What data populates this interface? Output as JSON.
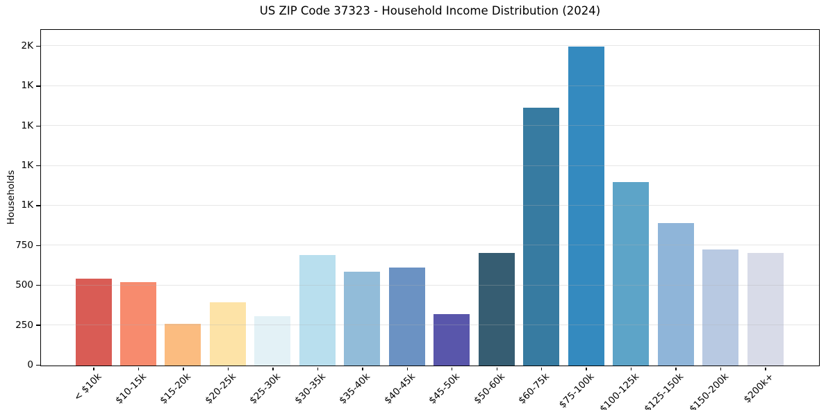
{
  "chart_data": {
    "type": "bar",
    "title": "US ZIP Code 37323 - Household Income Distribution (2024)",
    "xlabel": "",
    "ylabel": "Households",
    "categories": [
      "< $10k",
      "$10-15k",
      "$15-20k",
      "$20-25k",
      "$25-30k",
      "$30-35k",
      "$35-40k",
      "$40-45k",
      "$45-50k",
      "$50-60k",
      "$60-75k",
      "$75-100k",
      "$100-125k",
      "$125-150k",
      "$150-200k",
      "$200k+"
    ],
    "values": [
      546,
      523,
      261,
      396,
      309,
      693,
      588,
      614,
      322,
      707,
      1618,
      2000,
      1152,
      895,
      728,
      704
    ],
    "bar_colors": [
      "#d95c55",
      "#f78b6e",
      "#fbbc80",
      "#fde3a7",
      "#e3f1f6",
      "#b9dfee",
      "#92bcd9",
      "#6b92c3",
      "#5956ab",
      "#365d72",
      "#377ba1",
      "#348abf",
      "#5da4c8",
      "#8fb5d9",
      "#b8c9e2",
      "#d8dbe8"
    ],
    "yticks": [
      {
        "value": 0,
        "label": "0"
      },
      {
        "value": 250,
        "label": "250"
      },
      {
        "value": 500,
        "label": "500"
      },
      {
        "value": 750,
        "label": "750"
      },
      {
        "value": 1000,
        "label": "1K"
      },
      {
        "value": 1250,
        "label": "1K"
      },
      {
        "value": 1500,
        "label": "1K"
      },
      {
        "value": 1750,
        "label": "1K"
      },
      {
        "value": 2000,
        "label": "2K"
      }
    ],
    "ylim": [
      0,
      2100
    ],
    "grid": "horizontal",
    "legend": "none",
    "colors": {
      "background": "#ffffff",
      "spine": "#000000",
      "gridline": "#b0b0b0",
      "text": "#000000"
    }
  }
}
